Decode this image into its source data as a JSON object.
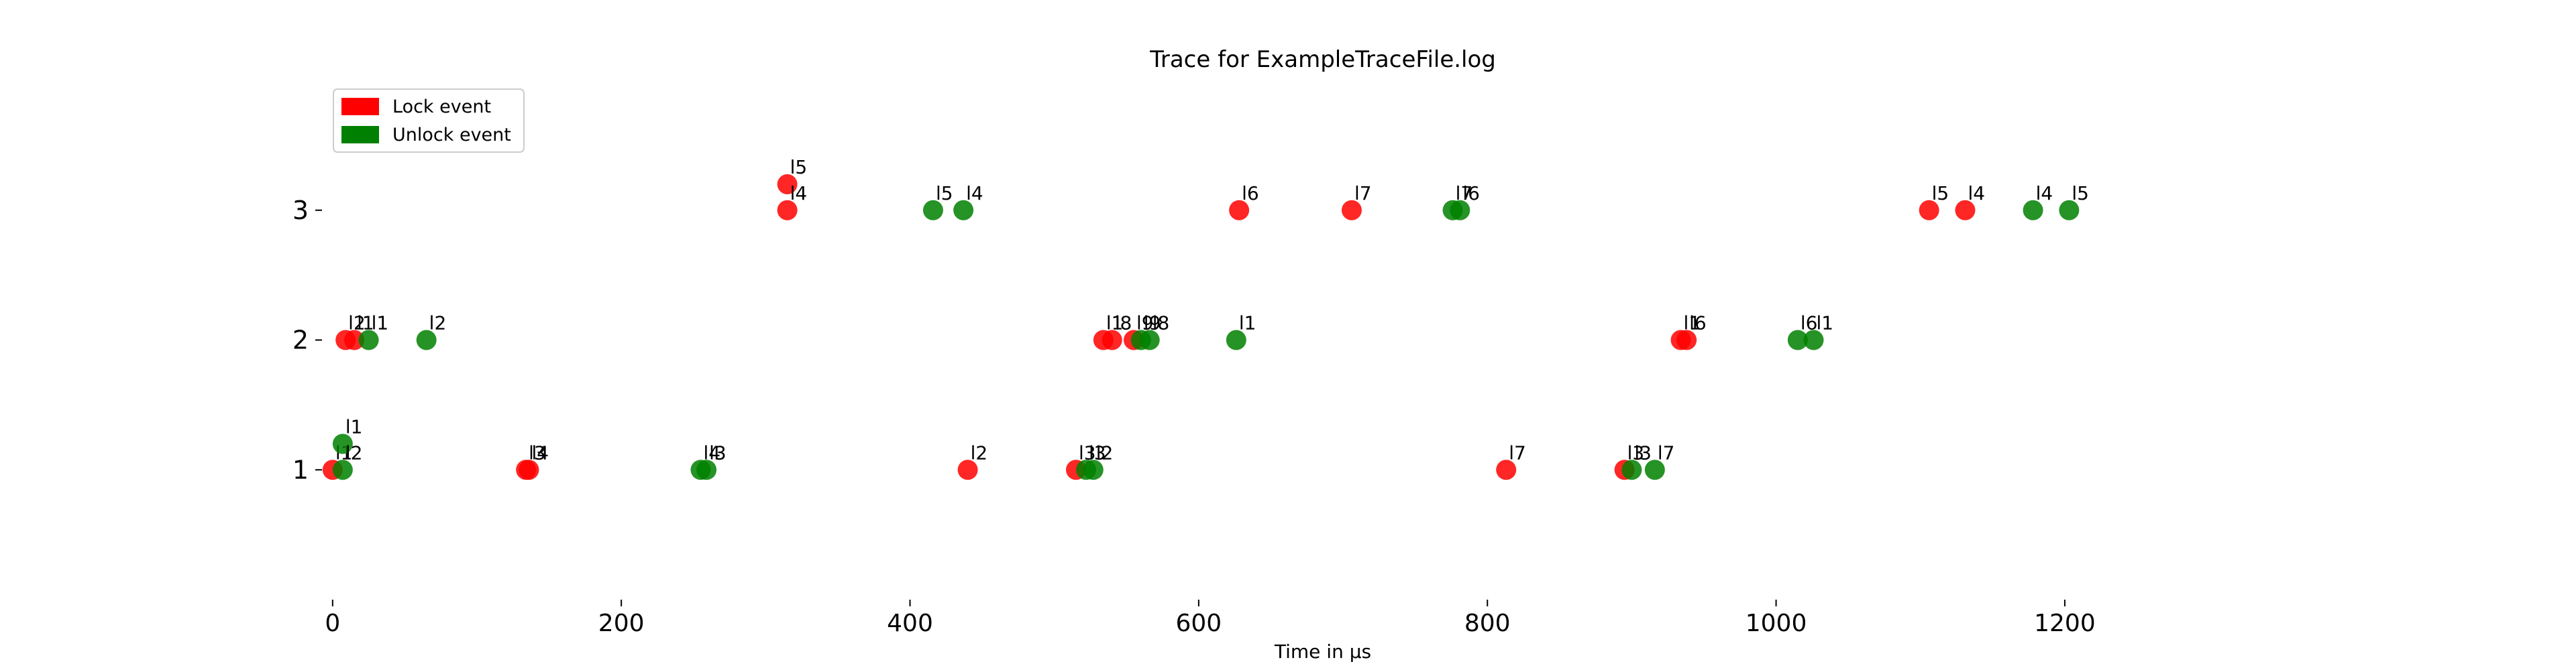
{
  "chart_data": {
    "type": "scatter",
    "title": "Trace for ExampleTraceFile.log",
    "xlabel": "Time in μs",
    "ylabel": "",
    "xlim": [
      -12,
      1385
    ],
    "ylim": [
      0,
      4
    ],
    "x_ticks": [
      0,
      200,
      400,
      600,
      800,
      1000,
      1200
    ],
    "y_ticks": [
      1,
      2,
      3
    ],
    "grid": false,
    "legend_position": "top-left",
    "colors": {
      "lock": "#ff0000",
      "unlock": "#008000"
    },
    "series": [
      {
        "name": "Lock event",
        "points": [
          {
            "x": 0,
            "y": 1,
            "label": "l1"
          },
          {
            "x": 134,
            "y": 1,
            "label": "l3"
          },
          {
            "x": 136,
            "y": 1,
            "label": "l4"
          },
          {
            "x": 440,
            "y": 1,
            "label": "l2"
          },
          {
            "x": 515,
            "y": 1,
            "label": "l3"
          },
          {
            "x": 813,
            "y": 1,
            "label": "l7"
          },
          {
            "x": 895,
            "y": 1,
            "label": "l3"
          },
          {
            "x": 9,
            "y": 2,
            "label": "l2"
          },
          {
            "x": 15,
            "y": 2,
            "label": "l1"
          },
          {
            "x": 534,
            "y": 2,
            "label": "l1"
          },
          {
            "x": 540,
            "y": 2,
            "label": "l8"
          },
          {
            "x": 555,
            "y": 2,
            "label": "l9"
          },
          {
            "x": 934,
            "y": 2,
            "label": "l1"
          },
          {
            "x": 938,
            "y": 2,
            "label": "l6"
          },
          {
            "x": 315,
            "y": 3.2,
            "label": "l5"
          },
          {
            "x": 315,
            "y": 3,
            "label": "l4"
          },
          {
            "x": 628,
            "y": 3,
            "label": "l6"
          },
          {
            "x": 706,
            "y": 3,
            "label": "l7"
          },
          {
            "x": 1106,
            "y": 3,
            "label": "l5"
          },
          {
            "x": 1131,
            "y": 3,
            "label": "l4"
          }
        ]
      },
      {
        "name": "Unlock event",
        "points": [
          {
            "x": 7,
            "y": 1.2,
            "label": "l1"
          },
          {
            "x": 7,
            "y": 1,
            "label": "l2"
          },
          {
            "x": 255,
            "y": 1,
            "label": "l4"
          },
          {
            "x": 259,
            "y": 1,
            "label": "l3"
          },
          {
            "x": 522,
            "y": 1,
            "label": "l3"
          },
          {
            "x": 527,
            "y": 1,
            "label": "l2"
          },
          {
            "x": 900,
            "y": 1,
            "label": "l3"
          },
          {
            "x": 916,
            "y": 1,
            "label": "l7"
          },
          {
            "x": 25,
            "y": 2,
            "label": "l1"
          },
          {
            "x": 65,
            "y": 2,
            "label": "l2"
          },
          {
            "x": 560,
            "y": 2,
            "label": "l9"
          },
          {
            "x": 566,
            "y": 2,
            "label": "l8"
          },
          {
            "x": 626,
            "y": 2,
            "label": "l1"
          },
          {
            "x": 1015,
            "y": 2,
            "label": "l6"
          },
          {
            "x": 1026,
            "y": 2,
            "label": "l1"
          },
          {
            "x": 416,
            "y": 3,
            "label": "l5"
          },
          {
            "x": 437,
            "y": 3,
            "label": "l4"
          },
          {
            "x": 776,
            "y": 3,
            "label": "l7"
          },
          {
            "x": 781,
            "y": 3,
            "label": "l6"
          },
          {
            "x": 1178,
            "y": 3,
            "label": "l4"
          },
          {
            "x": 1203,
            "y": 3,
            "label": "l5"
          }
        ]
      }
    ]
  }
}
